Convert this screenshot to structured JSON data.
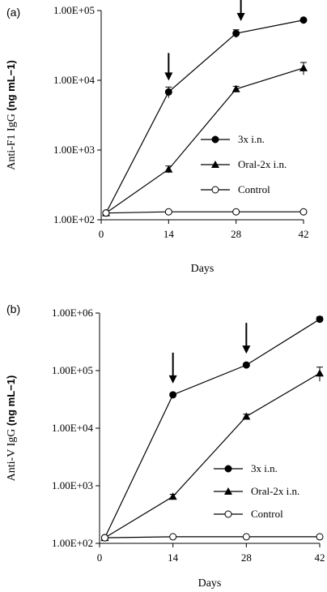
{
  "chart_data": [
    {
      "type": "line",
      "panel_label": "(a)",
      "ylabel": "Anti-F1 IgG",
      "ylabel_unit": "(ng mL−1)",
      "xlabel": "Days",
      "yscale": "log",
      "ylim": [
        100,
        100000
      ],
      "xlim": [
        0,
        42
      ],
      "xticks": [
        0,
        14,
        28,
        42
      ],
      "xtick_labels": [
        "0",
        "14",
        "28",
        "42"
      ],
      "yticks": [
        100,
        1000,
        10000,
        100000
      ],
      "ytick_labels": [
        "1.00E+02",
        "1.00E+03",
        "1.00E+04",
        "1.00E+05"
      ],
      "arrows_at_days": [
        14,
        29
      ],
      "legend_position": "right",
      "series": [
        {
          "name": "3x i.n.",
          "marker": "filled-circle",
          "x": [
            1,
            14,
            28,
            42
          ],
          "y": [
            125,
            6800,
            47000,
            73000
          ],
          "err": [
            0,
            1200,
            6000,
            3000
          ]
        },
        {
          "name": "Oral-2x i.n.",
          "marker": "filled-triangle",
          "x": [
            1,
            14,
            28,
            42
          ],
          "y": [
            125,
            530,
            7500,
            15000
          ],
          "err": [
            0,
            60,
            700,
            3000
          ]
        },
        {
          "name": "Control",
          "marker": "open-circle",
          "x": [
            1,
            14,
            28,
            42
          ],
          "y": [
            125,
            130,
            130,
            130
          ],
          "err": [
            0,
            0,
            0,
            0
          ]
        }
      ]
    },
    {
      "type": "line",
      "panel_label": "(b)",
      "ylabel": "Anti-V IgG",
      "ylabel_unit": "(ng mL−1)",
      "xlabel": "Days",
      "yscale": "log",
      "ylim": [
        100,
        1000000
      ],
      "xlim": [
        0,
        42
      ],
      "xticks": [
        0,
        14,
        28,
        42
      ],
      "xtick_labels": [
        "0",
        "14",
        "28",
        "42"
      ],
      "yticks": [
        100,
        1000,
        10000,
        100000,
        1000000
      ],
      "ytick_labels": [
        "1.00E+02",
        "1.00E+03",
        "1.00E+04",
        "1.00E+05",
        "1.00E+06"
      ],
      "arrows_at_days": [
        14,
        28
      ],
      "legend_position": "right",
      "series": [
        {
          "name": "3x i.n.",
          "marker": "filled-circle",
          "x": [
            1,
            14,
            28,
            42
          ],
          "y": [
            125,
            38000,
            125000,
            780000
          ],
          "err": [
            0,
            2000,
            8000,
            80000
          ]
        },
        {
          "name": "Oral-2x i.n.",
          "marker": "filled-triangle",
          "x": [
            1,
            14,
            28,
            42
          ],
          "y": [
            125,
            650,
            16000,
            90000
          ],
          "err": [
            0,
            60,
            1500,
            25000
          ]
        },
        {
          "name": "Control",
          "marker": "open-circle",
          "x": [
            1,
            14,
            28,
            42
          ],
          "y": [
            125,
            130,
            130,
            130
          ],
          "err": [
            0,
            0,
            0,
            0
          ]
        }
      ]
    }
  ]
}
